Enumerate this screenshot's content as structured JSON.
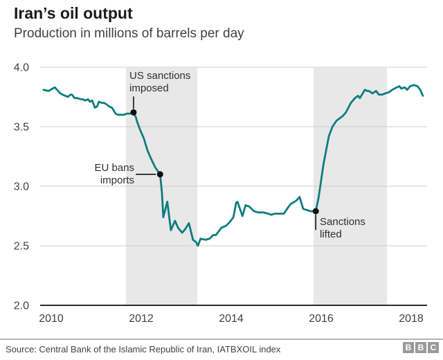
{
  "header": {
    "title": "Iran’s oil output",
    "subtitle": "Production in millions of barrels per day"
  },
  "chart_data": {
    "type": "line",
    "title": "Iran’s oil output",
    "ylabel_description": "Production in millions of barrels per day",
    "line_color": "#0e7c7e",
    "band_color": "#e8e8e8",
    "gridline_color": "#cccccc",
    "axis_color": "#2b2b2b",
    "xlim": [
      2009.75,
      2018.35
    ],
    "ylim": [
      2.0,
      4.0
    ],
    "x_ticks": [
      {
        "value": 2010,
        "label": "2010"
      },
      {
        "value": 2012,
        "label": "2012"
      },
      {
        "value": 2014,
        "label": "2014"
      },
      {
        "value": 2016,
        "label": "2016"
      },
      {
        "value": 2018,
        "label": "2018"
      }
    ],
    "y_ticks": [
      {
        "value": 4.0,
        "label": "4.0"
      },
      {
        "value": 3.5,
        "label": "3.5"
      },
      {
        "value": 3.0,
        "label": "3.0"
      },
      {
        "value": 2.5,
        "label": "2.5"
      },
      {
        "value": 2.0,
        "label": "2.0"
      }
    ],
    "shaded_bands": [
      {
        "from": 2011.66,
        "to": 2013.25
      },
      {
        "from": 2015.83,
        "to": 2017.46
      }
    ],
    "annotations": [
      {
        "lines": [
          "US sanctions",
          "imposed"
        ],
        "year": 2011.83,
        "value": 3.62,
        "leader": "up"
      },
      {
        "lines": [
          "EU bans",
          "imports"
        ],
        "year": 2012.42,
        "value": 3.1,
        "leader": "left"
      },
      {
        "lines": [
          "Sanctions",
          "lifted"
        ],
        "year": 2015.88,
        "value": 2.79,
        "leader": "down"
      }
    ],
    "series": [
      {
        "name": "Iran oil production (million barrels/day)",
        "points": [
          [
            2009.83,
            3.81
          ],
          [
            2009.94,
            3.8
          ],
          [
            2010.03,
            3.82
          ],
          [
            2010.08,
            3.83
          ],
          [
            2010.2,
            3.78
          ],
          [
            2010.25,
            3.77
          ],
          [
            2010.31,
            3.76
          ],
          [
            2010.37,
            3.75
          ],
          [
            2010.43,
            3.77
          ],
          [
            2010.46,
            3.77
          ],
          [
            2010.52,
            3.74
          ],
          [
            2010.58,
            3.74
          ],
          [
            2010.66,
            3.73
          ],
          [
            2010.71,
            3.73
          ],
          [
            2010.75,
            3.72
          ],
          [
            2010.82,
            3.73
          ],
          [
            2010.86,
            3.71
          ],
          [
            2010.91,
            3.72
          ],
          [
            2010.97,
            3.66
          ],
          [
            2011.02,
            3.67
          ],
          [
            2011.06,
            3.71
          ],
          [
            2011.12,
            3.7
          ],
          [
            2011.17,
            3.7
          ],
          [
            2011.22,
            3.69
          ],
          [
            2011.29,
            3.67
          ],
          [
            2011.35,
            3.66
          ],
          [
            2011.43,
            3.61
          ],
          [
            2011.48,
            3.6
          ],
          [
            2011.55,
            3.6
          ],
          [
            2011.62,
            3.6
          ],
          [
            2011.68,
            3.61
          ],
          [
            2011.75,
            3.61
          ],
          [
            2011.83,
            3.62
          ],
          [
            2011.88,
            3.58
          ],
          [
            2011.91,
            3.54
          ],
          [
            2011.98,
            3.47
          ],
          [
            2012.06,
            3.4
          ],
          [
            2012.14,
            3.3
          ],
          [
            2012.22,
            3.23
          ],
          [
            2012.31,
            3.16
          ],
          [
            2012.42,
            3.1
          ],
          [
            2012.46,
            2.95
          ],
          [
            2012.49,
            2.74
          ],
          [
            2012.58,
            2.87
          ],
          [
            2012.66,
            2.63
          ],
          [
            2012.75,
            2.71
          ],
          [
            2012.82,
            2.65
          ],
          [
            2012.91,
            2.61
          ],
          [
            2012.98,
            2.64
          ],
          [
            2013.06,
            2.69
          ],
          [
            2013.15,
            2.55
          ],
          [
            2013.22,
            2.53
          ],
          [
            2013.26,
            2.5
          ],
          [
            2013.32,
            2.56
          ],
          [
            2013.43,
            2.55
          ],
          [
            2013.52,
            2.56
          ],
          [
            2013.6,
            2.59
          ],
          [
            2013.66,
            2.59
          ],
          [
            2013.78,
            2.65
          ],
          [
            2013.89,
            2.67
          ],
          [
            2013.97,
            2.7
          ],
          [
            2014.05,
            2.74
          ],
          [
            2014.11,
            2.86
          ],
          [
            2014.14,
            2.87
          ],
          [
            2014.25,
            2.75
          ],
          [
            2014.32,
            2.84
          ],
          [
            2014.4,
            2.83
          ],
          [
            2014.51,
            2.79
          ],
          [
            2014.6,
            2.78
          ],
          [
            2014.71,
            2.78
          ],
          [
            2014.82,
            2.77
          ],
          [
            2014.89,
            2.76
          ],
          [
            2014.97,
            2.77
          ],
          [
            2015.06,
            2.77
          ],
          [
            2015.17,
            2.77
          ],
          [
            2015.28,
            2.83
          ],
          [
            2015.32,
            2.85
          ],
          [
            2015.45,
            2.88
          ],
          [
            2015.52,
            2.91
          ],
          [
            2015.6,
            2.81
          ],
          [
            2015.68,
            2.8
          ],
          [
            2015.77,
            2.79
          ],
          [
            2015.88,
            2.79
          ],
          [
            2015.94,
            2.9
          ],
          [
            2015.98,
            3.0
          ],
          [
            2016.05,
            3.18
          ],
          [
            2016.11,
            3.3
          ],
          [
            2016.17,
            3.42
          ],
          [
            2016.25,
            3.5
          ],
          [
            2016.34,
            3.55
          ],
          [
            2016.48,
            3.59
          ],
          [
            2016.55,
            3.62
          ],
          [
            2016.66,
            3.7
          ],
          [
            2016.75,
            3.74
          ],
          [
            2016.82,
            3.76
          ],
          [
            2016.86,
            3.74
          ],
          [
            2016.97,
            3.81
          ],
          [
            2017.02,
            3.8
          ],
          [
            2017.06,
            3.8
          ],
          [
            2017.14,
            3.78
          ],
          [
            2017.22,
            3.8
          ],
          [
            2017.28,
            3.77
          ],
          [
            2017.36,
            3.77
          ],
          [
            2017.43,
            3.78
          ],
          [
            2017.51,
            3.79
          ],
          [
            2017.58,
            3.81
          ],
          [
            2017.68,
            3.83
          ],
          [
            2017.74,
            3.84
          ],
          [
            2017.78,
            3.82
          ],
          [
            2017.86,
            3.83
          ],
          [
            2017.91,
            3.81
          ],
          [
            2017.98,
            3.84
          ],
          [
            2018.06,
            3.85
          ],
          [
            2018.14,
            3.84
          ],
          [
            2018.2,
            3.81
          ],
          [
            2018.26,
            3.76
          ]
        ]
      }
    ],
    "legend": "none",
    "grid": "horizontal"
  },
  "footer": {
    "source": "Source: Central Bank of the Islamic Republic of Iran, IATBXOIL index",
    "logo_letters": [
      "B",
      "B",
      "C"
    ]
  }
}
